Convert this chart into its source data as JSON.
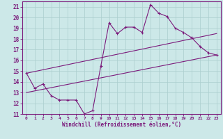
{
  "xlabel": "Windchill (Refroidissement éolien,°C)",
  "bg_color": "#cce8e8",
  "grid_color": "#aacece",
  "line_color": "#7b1a7b",
  "xlim": [
    -0.5,
    23.5
  ],
  "ylim": [
    11,
    21.5
  ],
  "yticks": [
    11,
    12,
    13,
    14,
    15,
    16,
    17,
    18,
    19,
    20,
    21
  ],
  "xticks": [
    0,
    1,
    2,
    3,
    4,
    5,
    6,
    7,
    8,
    9,
    10,
    11,
    12,
    13,
    14,
    15,
    16,
    17,
    18,
    19,
    20,
    21,
    22,
    23
  ],
  "main_x": [
    0,
    1,
    2,
    3,
    4,
    5,
    6,
    7,
    8,
    9,
    10,
    11,
    12,
    13,
    14,
    15,
    16,
    17,
    18,
    19,
    20,
    21,
    22,
    23
  ],
  "main_y": [
    14.8,
    13.4,
    13.8,
    12.7,
    12.3,
    12.3,
    12.3,
    11.0,
    11.3,
    15.5,
    19.5,
    18.5,
    19.1,
    19.1,
    18.6,
    21.2,
    20.4,
    20.1,
    19.0,
    18.6,
    18.1,
    17.3,
    16.7,
    16.5
  ],
  "line2_x": [
    0,
    23
  ],
  "line2_y": [
    13.0,
    16.5
  ],
  "line3_x": [
    0,
    23
  ],
  "line3_y": [
    14.8,
    18.5
  ]
}
